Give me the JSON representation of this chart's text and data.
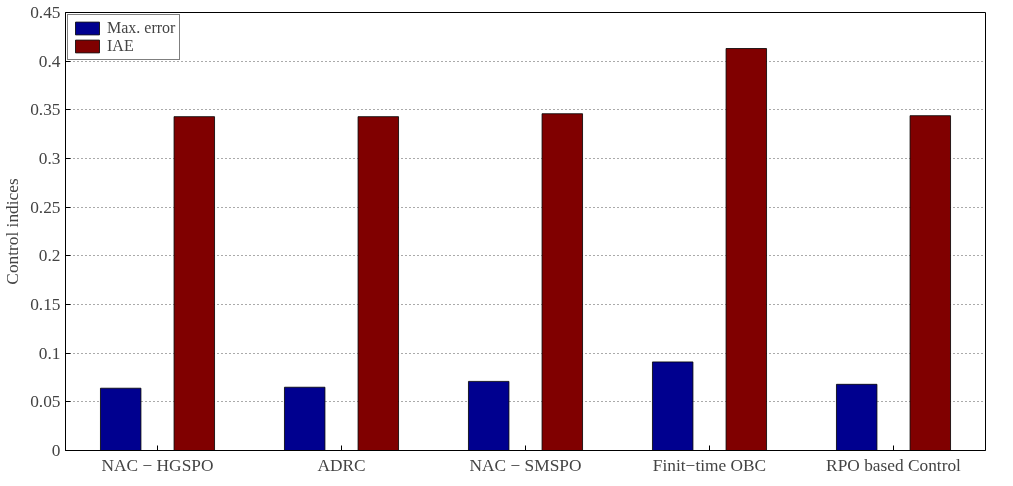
{
  "chart_data": {
    "type": "bar",
    "ylabel": "Control indices",
    "categories": [
      "NAC − HGSPO",
      "ADRC",
      "NAC − SMSPO",
      "Finit−time OBC",
      "RPO based Control"
    ],
    "series": [
      {
        "name": "Max. error",
        "color": "#00008f",
        "values": [
          0.064,
          0.065,
          0.071,
          0.091,
          0.068
        ]
      },
      {
        "name": "IAE",
        "color": "#800000",
        "values": [
          0.343,
          0.343,
          0.346,
          0.413,
          0.344
        ]
      }
    ],
    "ylim": [
      0,
      0.45
    ],
    "yticks": [
      {
        "value": 0,
        "label": "0"
      },
      0.05,
      0.1,
      0.15,
      0.2,
      0.25,
      0.3,
      0.35,
      0.4,
      0.45
    ],
    "grid": "y",
    "legend": "top left"
  }
}
